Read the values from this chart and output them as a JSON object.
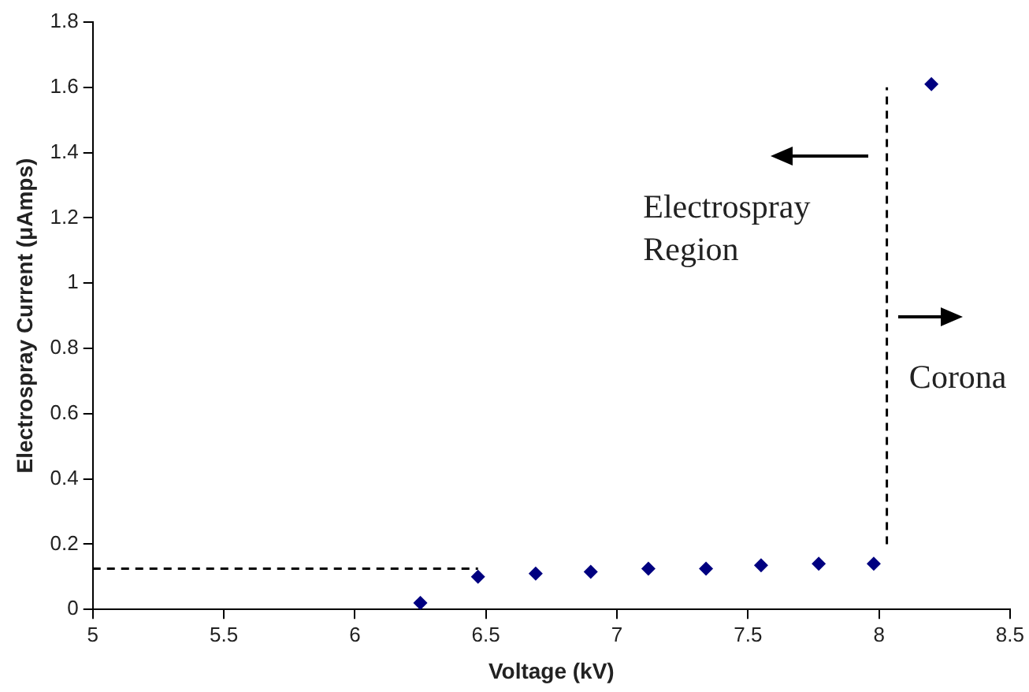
{
  "chart_data": {
    "type": "scatter",
    "xlabel": "Voltage (kV)",
    "ylabel": "Electrospray Current (μAmps)",
    "xlim": [
      5,
      8.5
    ],
    "xticks": [
      5,
      5.5,
      6,
      6.5,
      7,
      7.5,
      8,
      8.5
    ],
    "ylim": [
      0,
      1.8
    ],
    "yticks": [
      0,
      0.2,
      0.4,
      0.6,
      0.8,
      1,
      1.2,
      1.4,
      1.6,
      1.8
    ],
    "grid": false,
    "legend": false,
    "marker": "diamond",
    "series": [
      {
        "type": "scatter",
        "color": "#000080",
        "x": [
          6.25,
          6.47,
          6.69,
          6.9,
          7.12,
          7.34,
          7.55,
          7.77,
          7.98,
          8.2
        ],
        "values": [
          0.02,
          0.1,
          0.11,
          0.115,
          0.125,
          0.125,
          0.135,
          0.14,
          0.14,
          1.61
        ]
      },
      {
        "type": "line",
        "color": "#000000",
        "line_style": "dashed",
        "marker": "none",
        "x": [
          5,
          6.47
        ],
        "values": [
          0.125,
          0.125
        ]
      },
      {
        "type": "line",
        "color": "#000000",
        "line_style": "dashed",
        "marker": "none",
        "x": [
          8.03,
          8.03
        ],
        "values": [
          0.2,
          1.6
        ]
      }
    ],
    "annotations": [
      "Electrospray\nRegion",
      "Corona"
    ]
  }
}
